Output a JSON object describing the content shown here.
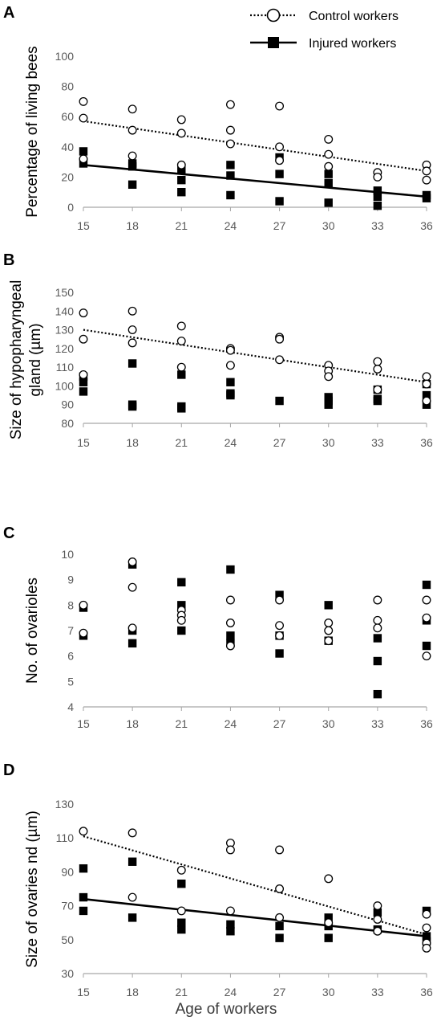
{
  "figure": {
    "xlabel": "Age of workers",
    "legend": [
      {
        "label": "Control workers",
        "marker": "open-circle",
        "line": "dotted"
      },
      {
        "label": "Injured workers",
        "marker": "filled-square",
        "line": "solid"
      }
    ],
    "legend_position": "top-right",
    "colors": {
      "control_marker": "#000000",
      "injured_marker": "#000000",
      "axis": "#a6a6a6",
      "tick_text": "#595959"
    }
  },
  "chart_data": [
    {
      "panel": "A",
      "type": "scatter",
      "ylabel": "Percentage of living bees",
      "x_ticks": [
        15,
        18,
        21,
        24,
        27,
        30,
        33,
        36
      ],
      "xlim": [
        15,
        36
      ],
      "ylim": [
        0,
        100
      ],
      "y_ticks": [
        0,
        20,
        40,
        60,
        80,
        100
      ],
      "grid": false,
      "series": [
        {
          "name": "Control workers",
          "points": [
            [
              15,
              70
            ],
            [
              15,
              59
            ],
            [
              15,
              32
            ],
            [
              18,
              65
            ],
            [
              18,
              51
            ],
            [
              18,
              34
            ],
            [
              21,
              58
            ],
            [
              21,
              49
            ],
            [
              21,
              28
            ],
            [
              24,
              68
            ],
            [
              24,
              51
            ],
            [
              24,
              42
            ],
            [
              27,
              67
            ],
            [
              27,
              40
            ],
            [
              27,
              31
            ],
            [
              30,
              45
            ],
            [
              30,
              35
            ],
            [
              30,
              27
            ],
            [
              33,
              23
            ],
            [
              33,
              20
            ],
            [
              36,
              28
            ],
            [
              36,
              24
            ],
            [
              36,
              18
            ]
          ],
          "trend": [
            [
              15,
              57
            ],
            [
              36,
              24
            ]
          ]
        },
        {
          "name": "Injured workers",
          "points": [
            [
              15,
              37
            ],
            [
              15,
              29
            ],
            [
              18,
              29
            ],
            [
              18,
              27
            ],
            [
              18,
              15
            ],
            [
              21,
              25
            ],
            [
              21,
              18
            ],
            [
              21,
              10
            ],
            [
              24,
              28
            ],
            [
              24,
              21
            ],
            [
              24,
              8
            ],
            [
              27,
              33
            ],
            [
              27,
              22
            ],
            [
              27,
              4
            ],
            [
              30,
              22
            ],
            [
              30,
              16
            ],
            [
              30,
              3
            ],
            [
              33,
              11
            ],
            [
              33,
              7
            ],
            [
              33,
              1
            ],
            [
              36,
              8
            ],
            [
              36,
              6
            ]
          ],
          "trend": [
            [
              15,
              28
            ],
            [
              36,
              7
            ]
          ]
        }
      ]
    },
    {
      "panel": "B",
      "type": "scatter",
      "ylabel": "Size of hypopharyngeal gland (µm)",
      "ylabel_lines": [
        "Size of hypopharyngeal",
        "gland (µm)"
      ],
      "x_ticks": [
        15,
        18,
        21,
        24,
        27,
        30,
        33,
        36
      ],
      "xlim": [
        15,
        36
      ],
      "ylim": [
        80,
        150
      ],
      "y_ticks": [
        80,
        90,
        100,
        110,
        120,
        130,
        140,
        150
      ],
      "grid": false,
      "series": [
        {
          "name": "Control workers",
          "points": [
            [
              15,
              139
            ],
            [
              15,
              125
            ],
            [
              15,
              106
            ],
            [
              18,
              140
            ],
            [
              18,
              130
            ],
            [
              18,
              123
            ],
            [
              21,
              132
            ],
            [
              21,
              124
            ],
            [
              21,
              110
            ],
            [
              24,
              120
            ],
            [
              24,
              119
            ],
            [
              24,
              111
            ],
            [
              27,
              126
            ],
            [
              27,
              125
            ],
            [
              27,
              114
            ],
            [
              30,
              111
            ],
            [
              30,
              108
            ],
            [
              30,
              105
            ],
            [
              33,
              113
            ],
            [
              33,
              109
            ],
            [
              33,
              98
            ],
            [
              36,
              105
            ],
            [
              36,
              101
            ],
            [
              36,
              92
            ]
          ],
          "trend": [
            [
              15,
              130
            ],
            [
              36,
              102
            ]
          ]
        },
        {
          "name": "Injured workers",
          "points": [
            [
              15,
              105
            ],
            [
              15,
              102
            ],
            [
              15,
              97
            ],
            [
              18,
              112
            ],
            [
              18,
              90
            ],
            [
              18,
              89
            ],
            [
              21,
              106
            ],
            [
              21,
              89
            ],
            [
              21,
              88
            ],
            [
              24,
              102
            ],
            [
              24,
              96
            ],
            [
              24,
              95
            ],
            [
              27,
              92
            ],
            [
              30,
              94
            ],
            [
              30,
              92
            ],
            [
              30,
              90
            ],
            [
              33,
              98
            ],
            [
              33,
              93
            ],
            [
              33,
              92
            ],
            [
              36,
              101
            ],
            [
              36,
              95
            ],
            [
              36,
              90
            ]
          ]
        }
      ]
    },
    {
      "panel": "C",
      "type": "scatter",
      "ylabel": "No. of ovarioles",
      "x_ticks": [
        15,
        18,
        21,
        24,
        27,
        30,
        33,
        36
      ],
      "xlim": [
        15,
        36
      ],
      "ylim": [
        4,
        10
      ],
      "y_ticks": [
        4,
        5,
        6,
        7,
        8,
        9,
        10
      ],
      "grid": false,
      "series": [
        {
          "name": "Control workers",
          "points": [
            [
              15,
              8.0
            ],
            [
              15,
              6.9
            ],
            [
              18,
              9.7
            ],
            [
              18,
              8.7
            ],
            [
              18,
              7.1
            ],
            [
              21,
              7.8
            ],
            [
              21,
              7.6
            ],
            [
              21,
              7.4
            ],
            [
              24,
              8.2
            ],
            [
              24,
              7.3
            ],
            [
              24,
              6.4
            ],
            [
              27,
              8.2
            ],
            [
              27,
              7.2
            ],
            [
              27,
              6.8
            ],
            [
              30,
              7.3
            ],
            [
              30,
              7.0
            ],
            [
              30,
              6.6
            ],
            [
              33,
              8.2
            ],
            [
              33,
              7.4
            ],
            [
              33,
              7.1
            ],
            [
              36,
              8.2
            ],
            [
              36,
              7.5
            ],
            [
              36,
              6.0
            ]
          ]
        },
        {
          "name": "Injured workers",
          "points": [
            [
              15,
              7.9
            ],
            [
              15,
              6.8
            ],
            [
              18,
              9.6
            ],
            [
              18,
              7.0
            ],
            [
              18,
              6.5
            ],
            [
              21,
              8.9
            ],
            [
              21,
              8.0
            ],
            [
              21,
              7.0
            ],
            [
              24,
              9.4
            ],
            [
              24,
              6.8
            ],
            [
              24,
              6.5
            ],
            [
              27,
              8.4
            ],
            [
              27,
              6.8
            ],
            [
              27,
              6.1
            ],
            [
              30,
              8.0
            ],
            [
              30,
              6.6
            ],
            [
              33,
              6.7
            ],
            [
              33,
              5.8
            ],
            [
              33,
              4.5
            ],
            [
              36,
              8.8
            ],
            [
              36,
              7.4
            ],
            [
              36,
              6.4
            ]
          ]
        }
      ]
    },
    {
      "panel": "D",
      "type": "scatter",
      "ylabel": "Size of ovaries nd (µm)",
      "x_ticks": [
        15,
        18,
        21,
        24,
        27,
        30,
        33,
        36
      ],
      "xlim": [
        15,
        36
      ],
      "ylim": [
        30,
        130
      ],
      "y_ticks": [
        30,
        50,
        70,
        90,
        110,
        130
      ],
      "grid": false,
      "series": [
        {
          "name": "Control workers",
          "points": [
            [
              15,
              114
            ],
            [
              18,
              113
            ],
            [
              18,
              75
            ],
            [
              21,
              91
            ],
            [
              21,
              67
            ],
            [
              24,
              107
            ],
            [
              24,
              103
            ],
            [
              24,
              67
            ],
            [
              27,
              103
            ],
            [
              27,
              80
            ],
            [
              27,
              63
            ],
            [
              30,
              86
            ],
            [
              30,
              60
            ],
            [
              33,
              70
            ],
            [
              33,
              62
            ],
            [
              33,
              55
            ],
            [
              36,
              65
            ],
            [
              36,
              57
            ],
            [
              36,
              48
            ],
            [
              36,
              45
            ]
          ],
          "trend": [
            [
              15,
              111
            ],
            [
              36,
              53
            ]
          ]
        },
        {
          "name": "Injured workers",
          "points": [
            [
              15,
              92
            ],
            [
              15,
              75
            ],
            [
              15,
              67
            ],
            [
              18,
              96
            ],
            [
              18,
              63
            ],
            [
              21,
              83
            ],
            [
              21,
              60
            ],
            [
              21,
              56
            ],
            [
              24,
              59
            ],
            [
              24,
              55
            ],
            [
              27,
              58
            ],
            [
              27,
              51
            ],
            [
              30,
              63
            ],
            [
              30,
              58
            ],
            [
              30,
              51
            ],
            [
              33,
              66
            ],
            [
              33,
              56
            ],
            [
              36,
              67
            ],
            [
              36,
              52
            ],
            [
              36,
              49
            ]
          ],
          "trend": [
            [
              15,
              74
            ],
            [
              36,
              52
            ]
          ]
        }
      ]
    }
  ]
}
